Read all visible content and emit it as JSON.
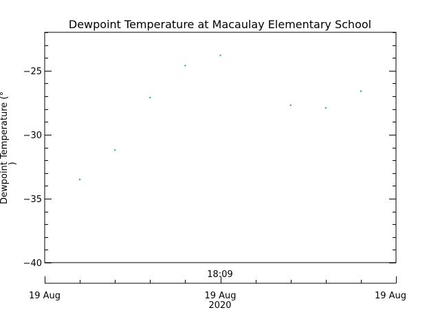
{
  "chart_data": {
    "type": "scatter",
    "title": "Dewpoint Temperature at Macaulay Elementary School",
    "ylabel_lines": [
      "Dewpoint Temperature (°",
      ")"
    ],
    "xlabel": "",
    "ylim": [
      -40,
      -22
    ],
    "yticks": [
      -40,
      -35,
      -30,
      -25
    ],
    "ytick_labels": [
      "−40",
      "−35",
      "−30",
      "−25"
    ],
    "y_minor_step": 1,
    "xlim_hours": [
      0,
      10
    ],
    "x_unit": "hours after 19 Aug 2020 (axis start)",
    "x_top_label": "18:09",
    "x_top_label_hour": 5,
    "x_major_ticks": [
      0,
      5,
      10
    ],
    "x_minor_ticks": [
      1,
      2,
      3,
      4,
      6,
      7,
      8,
      9
    ],
    "x_tick_labels": [
      "19 Aug",
      "19 Aug",
      "19 Aug"
    ],
    "x_year_label": "2020",
    "marker_color": "#1f8fd0",
    "points": [
      {
        "x": 1.0,
        "y": -33.5
      },
      {
        "x": 2.0,
        "y": -31.2
      },
      {
        "x": 3.0,
        "y": -27.1
      },
      {
        "x": 4.0,
        "y": -24.6
      },
      {
        "x": 5.0,
        "y": -23.8
      },
      {
        "x": 7.0,
        "y": -27.7
      },
      {
        "x": 8.0,
        "y": -27.9
      },
      {
        "x": 9.0,
        "y": -26.6
      }
    ],
    "grid": false,
    "legend": "none"
  }
}
